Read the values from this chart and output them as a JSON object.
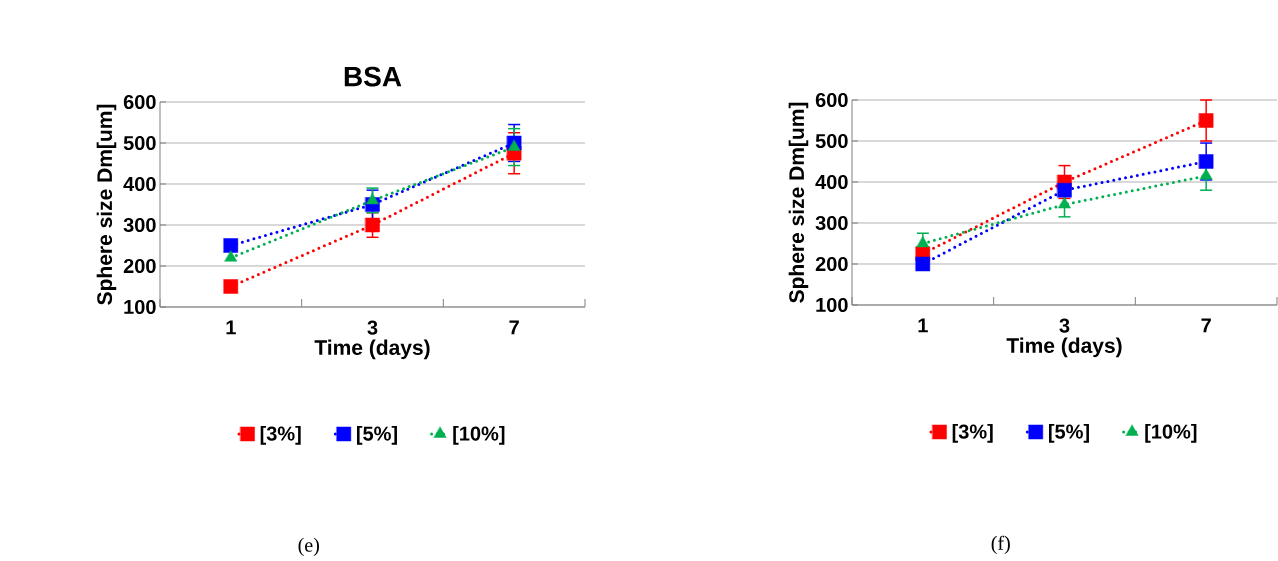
{
  "chart_data": [
    {
      "type": "line",
      "title": "BSA",
      "xlabel": "Time (days)",
      "ylabel": "Sphere size Dm[um]",
      "categories": [
        "1",
        "3",
        "7"
      ],
      "ylim": [
        100,
        600
      ],
      "yticks": [
        100,
        200,
        300,
        400,
        500,
        600
      ],
      "grid": "y",
      "legend": "bottom",
      "line_style": "dotted",
      "annotations": [
        "(e)"
      ],
      "series": [
        {
          "name": "[3%]",
          "color": "#ff0000",
          "marker": "square",
          "values": [
            150,
            300,
            475
          ],
          "errors": [
            null,
            30,
            50
          ]
        },
        {
          "name": "[5%]",
          "color": "#0000ff",
          "marker": "square",
          "values": [
            250,
            350,
            500
          ],
          "errors": [
            null,
            35,
            45
          ]
        },
        {
          "name": "[10%]",
          "color": "#00b050",
          "marker": "triangle",
          "values": [
            220,
            360,
            490
          ],
          "errors": [
            null,
            30,
            45
          ]
        }
      ]
    },
    {
      "type": "line",
      "xlabel": "Time (days)",
      "ylabel": "Sphere size Dm[um]",
      "categories": [
        "1",
        "3",
        "7"
      ],
      "ylim": [
        100,
        600
      ],
      "yticks": [
        100,
        200,
        300,
        400,
        500,
        600
      ],
      "grid": "y",
      "legend": "bottom",
      "line_style": "dotted",
      "annotations": [
        "(f)"
      ],
      "series": [
        {
          "name": "[3%]",
          "color": "#ff0000",
          "marker": "square",
          "values": [
            225,
            400,
            550
          ],
          "errors": [
            null,
            40,
            50
          ]
        },
        {
          "name": "[5%]",
          "color": "#0000ff",
          "marker": "square",
          "values": [
            200,
            380,
            450
          ],
          "errors": [
            null,
            null,
            45
          ]
        },
        {
          "name": "[10%]",
          "color": "#00b050",
          "marker": "triangle",
          "values": [
            250,
            345,
            415
          ],
          "errors": [
            25,
            30,
            35
          ]
        }
      ]
    }
  ]
}
